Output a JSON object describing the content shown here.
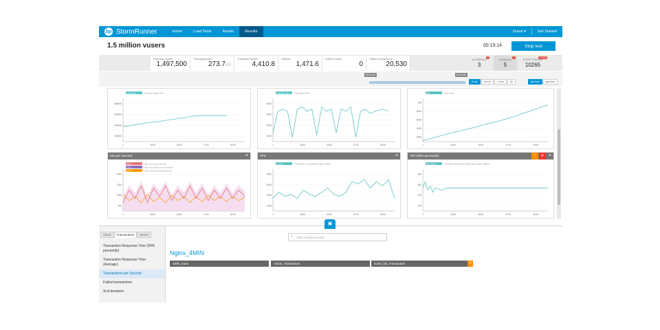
{
  "nav": {
    "logo_text": "StormRunner",
    "items": [
      {
        "label": "Home"
      },
      {
        "label": "Load Tests"
      },
      {
        "label": "Assets"
      },
      {
        "label": "Results"
      }
    ],
    "user": "Guest",
    "get_started": "Get Started"
  },
  "test": {
    "name": "1.5 million vusers",
    "timer": "00:19:14",
    "stop_label": "Stop test"
  },
  "metrics": [
    {
      "label": "Running Vusers",
      "value": "1,497,500"
    },
    {
      "label": "Throughput/sec",
      "value": "273.7",
      "suffix": "KB"
    },
    {
      "label": "Transactions/sec",
      "value": "4,410.8"
    },
    {
      "label": "Hits/sec",
      "value": "1,471.6"
    },
    {
      "label": "Failed Vusers",
      "value": "0"
    },
    {
      "label": "Failed transactions",
      "value": "20,530"
    }
  ],
  "sla": [
    {
      "label": "SLA BREACH",
      "value": "3",
      "badge": "3"
    },
    {
      "label": "ANOMALIE",
      "value": "5",
      "badge": "1"
    },
    {
      "label": "SCRIPT ERRORS",
      "value": "10265",
      "badge": "10265"
    }
  ],
  "timeline": {
    "start_tag": "00:14:24",
    "end_tag": "00:19:24",
    "ranges": [
      "5 min",
      "15 min",
      "1 hour",
      "All"
    ],
    "live_buttons": [
      "last time",
      "app time"
    ]
  },
  "charts": [
    {
      "title": "",
      "legend": [
        "1,245,830",
        "Running Vusers (All)"
      ],
      "color": "#5bc2c2",
      "yticks": [
        "800000",
        "600000",
        "400000",
        "200000"
      ],
      "xticks": [
        "1",
        "15:00",
        "16:00",
        "17:00",
        "18:00"
      ],
      "series": [
        [
          0,
          0.35
        ],
        [
          0.05,
          0.37
        ],
        [
          0.1,
          0.39
        ],
        [
          0.15,
          0.41
        ],
        [
          0.2,
          0.43
        ],
        [
          0.25,
          0.45
        ],
        [
          0.3,
          0.47
        ],
        [
          0.35,
          0.49
        ],
        [
          0.4,
          0.51
        ],
        [
          0.45,
          0.53
        ],
        [
          0.5,
          0.55
        ],
        [
          0.55,
          0.58
        ],
        [
          0.6,
          0.6
        ],
        [
          0.65,
          0.6
        ],
        [
          0.7,
          0.6
        ],
        [
          0.75,
          0.6
        ],
        [
          0.8,
          0.6
        ],
        [
          0.85,
          0.6
        ]
      ]
    },
    {
      "title": "",
      "legend": [
        "275,029.1 Byt",
        "Throughput (All)"
      ],
      "color": "#5bc2c2",
      "yticks": [
        "400K",
        "300K",
        "200K",
        "100K"
      ],
      "xticks": [
        "1",
        "15:00",
        "16:00",
        "17:00",
        "18:00"
      ],
      "series": [
        [
          0,
          0.2
        ],
        [
          0.04,
          0.7
        ],
        [
          0.08,
          0.75
        ],
        [
          0.12,
          0.7
        ],
        [
          0.16,
          0.1
        ],
        [
          0.2,
          0.75
        ],
        [
          0.24,
          0.8
        ],
        [
          0.28,
          0.7
        ],
        [
          0.32,
          0.75
        ],
        [
          0.36,
          0.15
        ],
        [
          0.4,
          0.8
        ],
        [
          0.44,
          0.7
        ],
        [
          0.48,
          0.75
        ],
        [
          0.52,
          0.2
        ],
        [
          0.56,
          0.75
        ],
        [
          0.6,
          0.7
        ],
        [
          0.64,
          0.8
        ],
        [
          0.68,
          0.1
        ],
        [
          0.72,
          0.7
        ],
        [
          0.76,
          0.75
        ],
        [
          0.8,
          0.65
        ],
        [
          0.84,
          0.7
        ],
        [
          0.9,
          0.75
        ],
        [
          0.95,
          0.7
        ]
      ]
    },
    {
      "title": "",
      "legend": [
        "88K",
        "Errors (All)"
      ],
      "color": "#5bc2c2",
      "yticks": [
        "10K",
        "8000",
        "6000",
        "4000",
        "2000"
      ],
      "xticks": [
        "1",
        "15:00",
        "16:00",
        "17:00",
        "18:00"
      ],
      "series": [
        [
          0,
          0.02
        ],
        [
          0.1,
          0.1
        ],
        [
          0.2,
          0.18
        ],
        [
          0.3,
          0.25
        ],
        [
          0.4,
          0.32
        ],
        [
          0.5,
          0.4
        ],
        [
          0.6,
          0.47
        ],
        [
          0.7,
          0.55
        ],
        [
          0.8,
          0.65
        ],
        [
          0.9,
          0.75
        ],
        [
          1,
          0.85
        ]
      ]
    },
    {
      "title": "Hits per Second",
      "legend": [
        "350.8",
        "Hits / sec (All) (Internal)"
      ],
      "color": "#e57373",
      "legend2": [
        "120.2",
        "Hits / sec (All) Low (Sr.Internal)"
      ],
      "legend3": [
        "678.0",
        "Hits / sec (All) Mod (Dropped)"
      ],
      "yticks": [
        "2000",
        "1500",
        "1000",
        "500"
      ],
      "xticks": [
        "1",
        "15:00",
        "16:00",
        "17:00",
        "18:00"
      ],
      "series": [
        [
          0,
          0.2
        ],
        [
          0.05,
          0.5
        ],
        [
          0.1,
          0.3
        ],
        [
          0.15,
          0.6
        ],
        [
          0.2,
          0.2
        ],
        [
          0.25,
          0.55
        ],
        [
          0.3,
          0.35
        ],
        [
          0.35,
          0.6
        ],
        [
          0.4,
          0.25
        ],
        [
          0.45,
          0.5
        ],
        [
          0.5,
          0.3
        ],
        [
          0.55,
          0.6
        ],
        [
          0.6,
          0.3
        ],
        [
          0.65,
          0.55
        ],
        [
          0.7,
          0.25
        ],
        [
          0.75,
          0.5
        ],
        [
          0.8,
          0.3
        ],
        [
          0.85,
          0.55
        ],
        [
          0.9,
          0.3
        ],
        [
          0.95,
          0.5
        ],
        [
          1,
          0.35
        ]
      ]
    },
    {
      "title": "TPS",
      "legend": [
        "1,947.2",
        "TPS (Action_Transaction | Nginx_4MIN)"
      ],
      "color": "#5bc2c2",
      "yticks": [
        "4000",
        "3000",
        "2000",
        "1000"
      ],
      "xticks": [
        "1",
        "15:00",
        "16:00",
        "17:00",
        "18:00"
      ],
      "series": [
        [
          0,
          0.3
        ],
        [
          0.05,
          0.45
        ],
        [
          0.1,
          0.35
        ],
        [
          0.15,
          0.4
        ],
        [
          0.2,
          0.3
        ],
        [
          0.25,
          0.5
        ],
        [
          0.3,
          0.4
        ],
        [
          0.35,
          0.35
        ],
        [
          0.4,
          0.45
        ],
        [
          0.45,
          0.55
        ],
        [
          0.5,
          0.4
        ],
        [
          0.55,
          0.35
        ],
        [
          0.6,
          0.45
        ],
        [
          0.65,
          0.7
        ],
        [
          0.7,
          0.65
        ],
        [
          0.75,
          0.75
        ],
        [
          0.8,
          0.55
        ],
        [
          0.85,
          0.7
        ],
        [
          0.9,
          0.6
        ],
        [
          0.95,
          0.75
        ],
        [
          1,
          0.3
        ]
      ]
    },
    {
      "title": "TRT (90% percentile)",
      "legend": [
        "543.35971 s",
        "TRT (90% percentile) (100K_trans | Nginx_4MIN)"
      ],
      "color": "#5bc2c2",
      "yticks": [
        "800",
        "600",
        "400",
        "200"
      ],
      "xticks": [
        "1",
        "15:00",
        "16:00",
        "17:00",
        "18:00"
      ],
      "series": [
        [
          0,
          0.55
        ],
        [
          0.02,
          0.7
        ],
        [
          0.04,
          0.5
        ],
        [
          0.06,
          0.6
        ],
        [
          0.08,
          0.45
        ],
        [
          0.1,
          0.55
        ],
        [
          0.15,
          0.5
        ],
        [
          0.2,
          0.55
        ],
        [
          0.3,
          0.55
        ],
        [
          0.4,
          0.55
        ],
        [
          0.5,
          0.55
        ],
        [
          0.6,
          0.55
        ],
        [
          0.7,
          0.55
        ],
        [
          0.8,
          0.55
        ],
        [
          0.9,
          0.55
        ],
        [
          1,
          0.55
        ]
      ]
    }
  ],
  "bottom": {
    "tabs": [
      "Client",
      "Transactions",
      "Server"
    ],
    "side_items": [
      "Transaction Response Time (90% percentile)",
      "Transaction Response Time (Average)",
      "Transactions per Second",
      "Failed transactions",
      "SLA breakers"
    ],
    "search_placeholder": "Filter measurements",
    "group_title": "Nginx_4MIN",
    "transactions": [
      "100K_trans",
      "Action_Transaction",
      "vuser_init_Transaction"
    ]
  }
}
